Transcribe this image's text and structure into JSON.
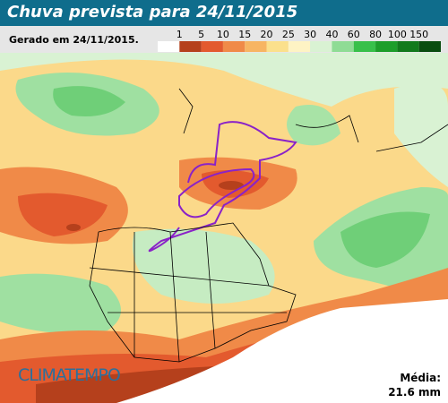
{
  "header": {
    "title": "Chuva prevista para 24/11/2015",
    "generated": "Gerado em 24/11/2015."
  },
  "legend": {
    "labels": [
      1,
      5,
      10,
      15,
      20,
      25,
      30,
      40,
      60,
      80,
      100,
      150
    ],
    "colors": [
      "#ffffff",
      "#b5401c",
      "#e35a2e",
      "#f08a48",
      "#f7b563",
      "#fbe08c",
      "#fef3c4",
      "#d9f2d3",
      "#8fdc95",
      "#38c04a",
      "#1d9e2a",
      "#127a1c",
      "#0a4d10"
    ]
  },
  "branding": {
    "logo": "CLIMATEMPO"
  },
  "summary": {
    "label": "Média:",
    "value": "21.6 mm"
  }
}
